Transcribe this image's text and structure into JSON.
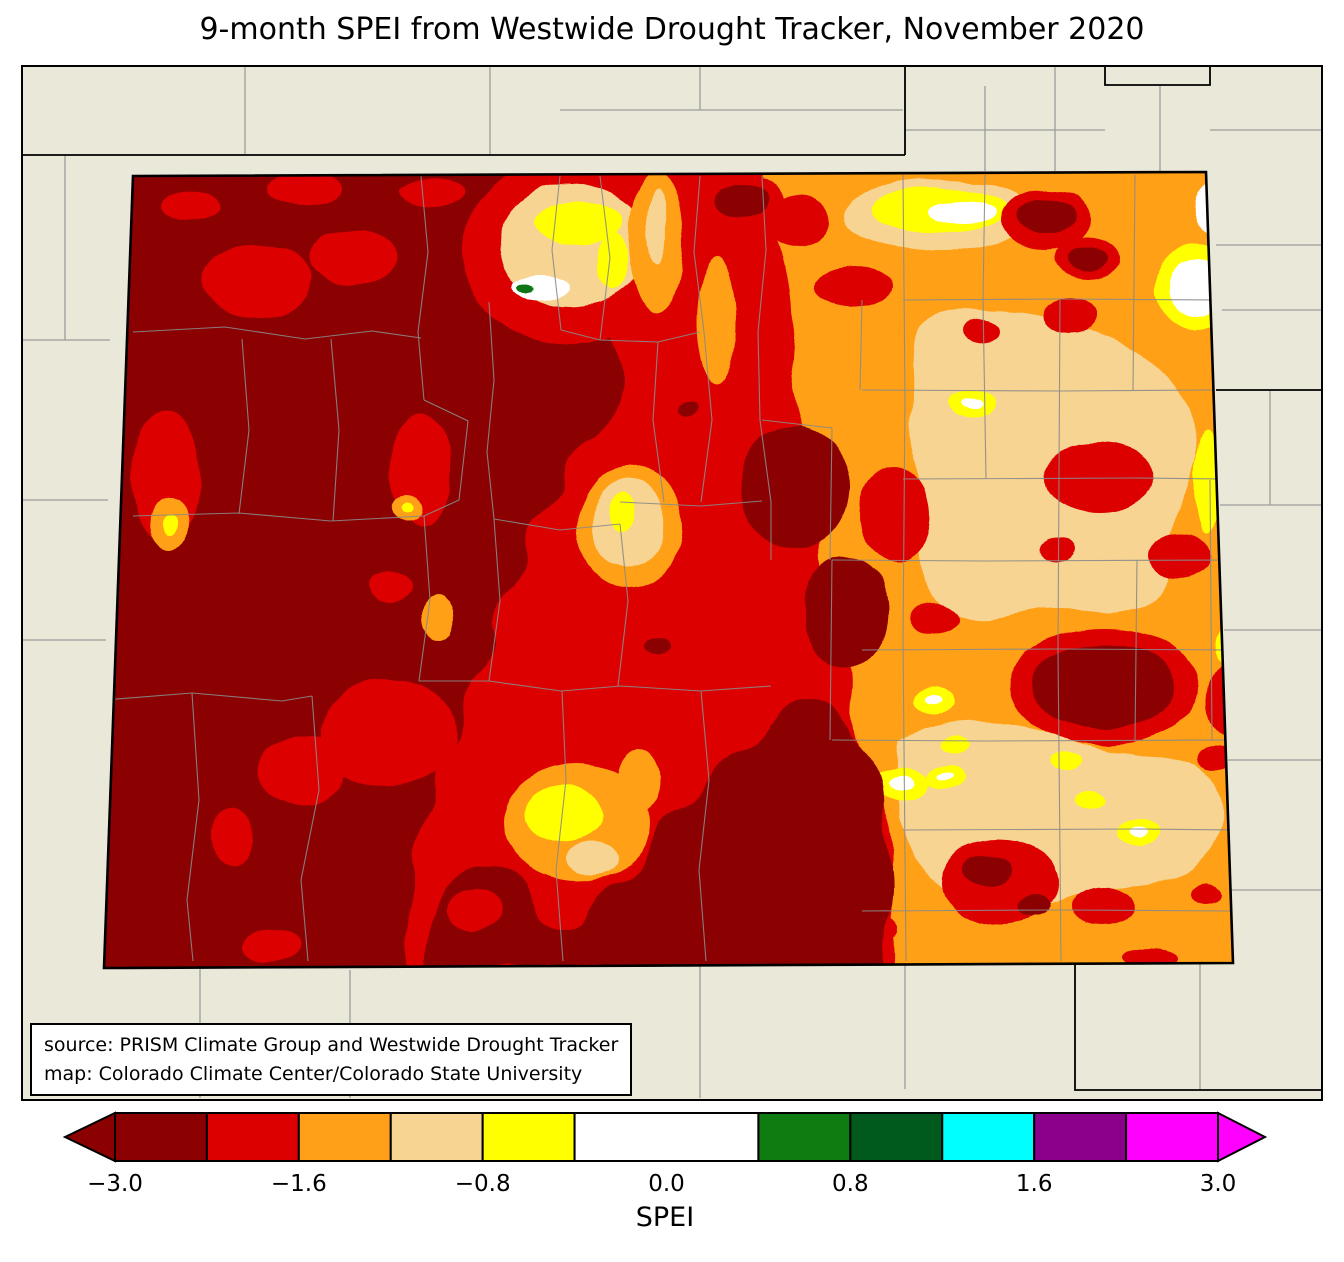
{
  "title": "9-month SPEI from Westwide Drought Tracker, November 2020",
  "source_box": {
    "line1": "source: PRISM Climate Group and Westwide Drought Tracker",
    "line2": "map: Colorado Climate Center/Colorado State University"
  },
  "map": {
    "region": "Colorado",
    "background": "#eae8d8",
    "border_color": "#000000",
    "county_line_color": "#8a8a8a",
    "neighbor_county_line_color": "#9c9c9c",
    "palette": {
      "darkred": "#8b0000",
      "red": "#dd0000",
      "orange": "#ffa018",
      "tan": "#f7d492",
      "yellow": "#ffff00",
      "white": "#ffffff",
      "green": "#0d7512"
    }
  },
  "colorbar": {
    "label": "SPEI",
    "total_units": 12,
    "segments": [
      {
        "color": "#8b0000",
        "units": 1
      },
      {
        "color": "#dd0000",
        "units": 1
      },
      {
        "color": "#ffa018",
        "units": 1
      },
      {
        "color": "#f7d492",
        "units": 1
      },
      {
        "color": "#ffff00",
        "units": 1
      },
      {
        "color": "#ffffff",
        "units": 2
      },
      {
        "color": "#0e7c10",
        "units": 1
      },
      {
        "color": "#005a1e",
        "units": 1
      },
      {
        "color": "#00ffff",
        "units": 1
      },
      {
        "color": "#8b008b",
        "units": 1
      },
      {
        "color": "#ff00ff",
        "units": 1
      }
    ],
    "arrow_left_color": "#8b0000",
    "arrow_right_color": "#ff00ff",
    "ticks": [
      {
        "pos": 0,
        "label": "−3.0"
      },
      {
        "pos": 2,
        "label": "−1.6"
      },
      {
        "pos": 4,
        "label": "−0.8"
      },
      {
        "pos": 6,
        "label": "0.0"
      },
      {
        "pos": 8,
        "label": "0.8"
      },
      {
        "pos": 10,
        "label": "1.6"
      },
      {
        "pos": 12,
        "label": "3.0"
      }
    ]
  }
}
